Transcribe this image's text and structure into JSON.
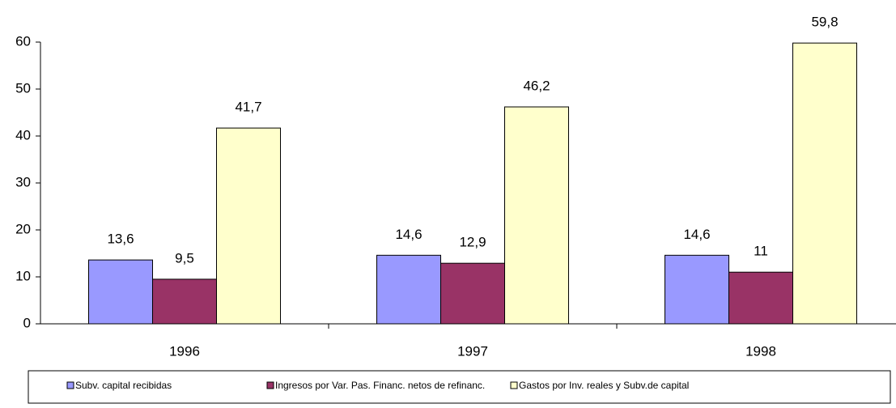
{
  "chart_data": {
    "type": "bar",
    "categories": [
      "1996",
      "1997",
      "1998"
    ],
    "series": [
      {
        "name": "Subv. capital recibidas",
        "color": "#9999ff",
        "values": [
          13.6,
          14.6,
          14.6
        ],
        "value_labels": [
          "13,6",
          "14,6",
          "14,6"
        ]
      },
      {
        "name": "Ingresos por Var. Pas. Financ. netos de refinanc.",
        "color": "#993366",
        "values": [
          9.5,
          12.9,
          11
        ],
        "value_labels": [
          "9,5",
          "12,9",
          "11"
        ]
      },
      {
        "name": "Gastos por Inv. reales y Subv.de capital",
        "color": "#ffffcc",
        "values": [
          41.7,
          46.2,
          59.8
        ],
        "value_labels": [
          "41,7",
          "46,2",
          "59,8"
        ]
      }
    ],
    "ylim": [
      0,
      60
    ],
    "yticks": [
      0,
      10,
      20,
      30,
      40,
      50,
      60
    ],
    "grid": false,
    "legend": "bottom"
  }
}
